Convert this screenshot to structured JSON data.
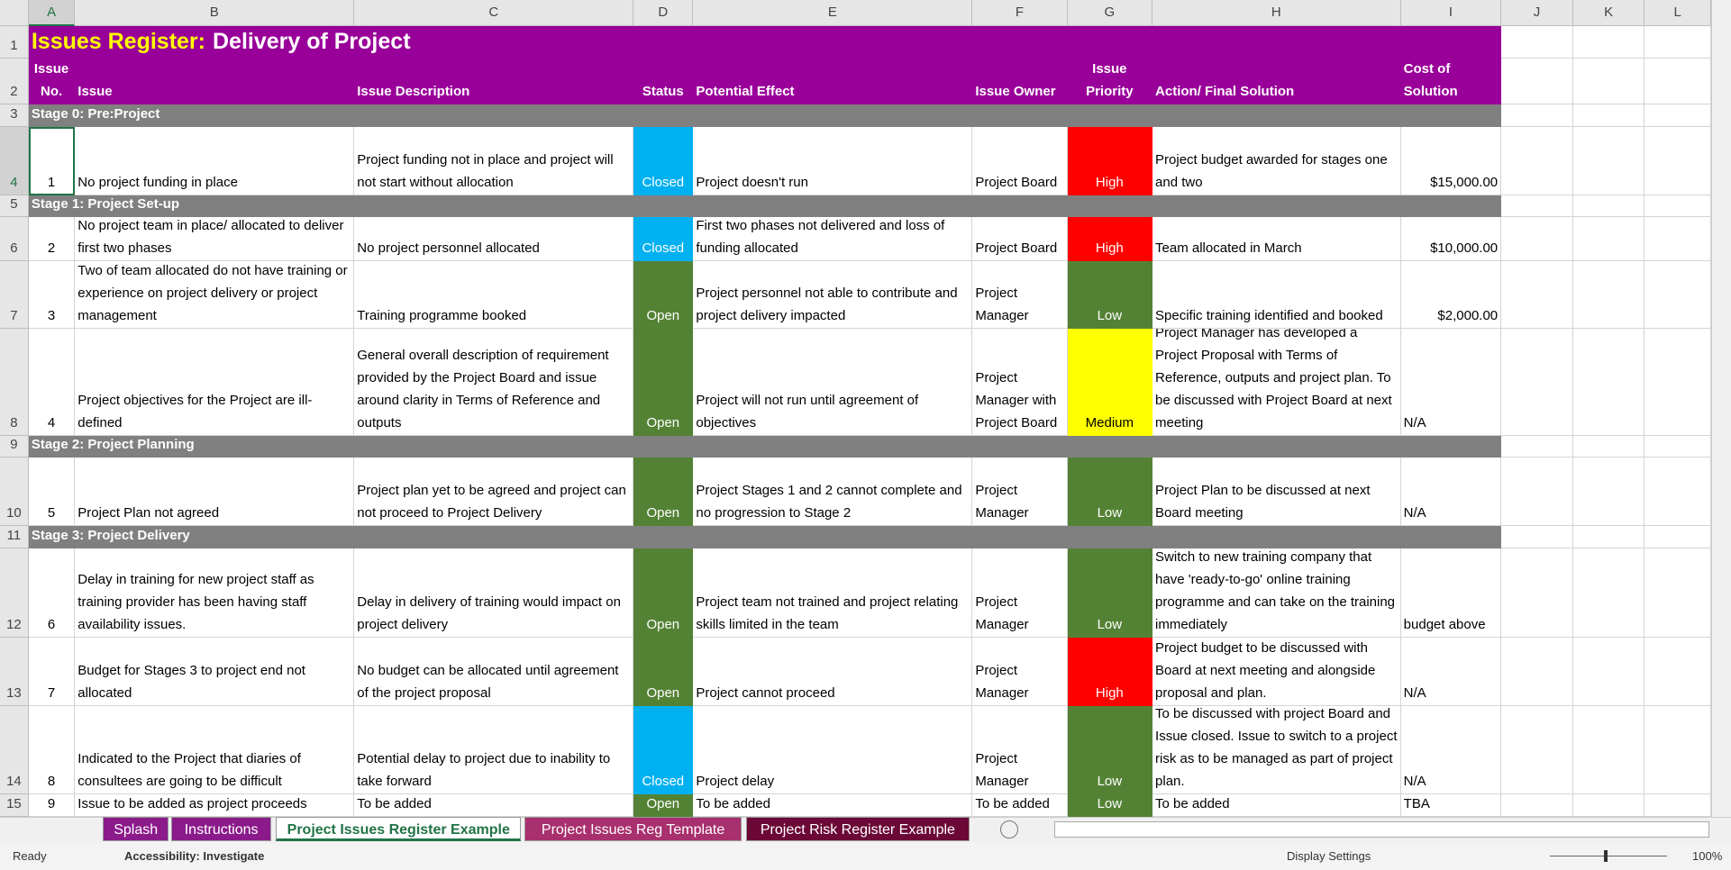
{
  "column_headers": [
    "A",
    "B",
    "C",
    "D",
    "E",
    "F",
    "G",
    "H",
    "I",
    "J",
    "K",
    "L"
  ],
  "row_headers": [
    1,
    2,
    3,
    4,
    5,
    6,
    7,
    8,
    9,
    10,
    11,
    12,
    13,
    14,
    15
  ],
  "title": {
    "prefix": "Issues Register:",
    "main": "Delivery of Project"
  },
  "header": {
    "no": "Issue No.",
    "issue": "Issue",
    "description": "Issue Description",
    "status": "Status",
    "effect": "Potential Effect",
    "owner": "Issue Owner",
    "priority": "Issue Priority",
    "action": "Action/ Final Solution",
    "cost": "Cost of Solution"
  },
  "rows": [
    {
      "stage": "Stage 0: Pre:Project"
    },
    {
      "no": 1,
      "issue": "No project funding in place",
      "description": "Project funding not in place and project will not start without allocation",
      "status": "Closed",
      "status_fill": "#00b0f0",
      "effect": "Project doesn't run",
      "owner": "Project Board",
      "priority": "High",
      "priority_fill": "#ff0000",
      "action": "Project budget awarded for stages one and two",
      "cost": "$15,000.00"
    },
    {
      "stage": "Stage 1: Project Set-up"
    },
    {
      "no": 2,
      "issue": "No project team in place/ allocated to deliver first two phases",
      "description": "No project personnel allocated",
      "status": "Closed",
      "status_fill": "#00b0f0",
      "effect": "First two phases not delivered and loss of funding allocated",
      "owner": "Project Board",
      "priority": "High",
      "priority_fill": "#ff0000",
      "action": "Team allocated in March",
      "cost": "$10,000.00"
    },
    {
      "no": 3,
      "issue": "Two of team allocated do not have training or experience on project delivery or project management",
      "description": "Training programme booked",
      "status": "Open",
      "status_fill": "#548235",
      "effect": "Project personnel not able to contribute and project delivery impacted",
      "owner": "Project Manager",
      "priority": "Low",
      "priority_fill": "#548235",
      "action": "Specific training identified and booked",
      "cost": "$2,000.00"
    },
    {
      "no": 4,
      "issue": "Project objectives for the Project are ill-defined",
      "description": "General overall description of requirement provided by the Project Board and issue around clarity in Terms of Reference and outputs",
      "status": "Open",
      "status_fill": "#548235",
      "effect": "Project will not run until agreement of objectives",
      "owner": "Project Manager with Project Board",
      "priority": "Medium",
      "priority_fill": "#ffff00",
      "action": "Project Manager has developed a Project Proposal with Terms of Reference, outputs and project plan. To be discussed with Project Board at next meeting",
      "cost": "N/A"
    },
    {
      "stage": "Stage 2: Project Planning"
    },
    {
      "no": 5,
      "issue": "Project Plan not agreed",
      "description": "Project plan yet to be agreed and project can not proceed to Project Delivery",
      "status": "Open",
      "status_fill": "#548235",
      "effect": "Project Stages 1 and 2 cannot complete and no progression to Stage 2",
      "owner": "Project Manager",
      "priority": "Low",
      "priority_fill": "#548235",
      "action": "Project Plan to be discussed at next Board meeting",
      "cost": "N/A"
    },
    {
      "stage": "Stage 3: Project Delivery"
    },
    {
      "no": 6,
      "issue": "Delay in training for new project staff as training provider has been having staff availability issues.",
      "description": "Delay in delivery of training would impact on project delivery",
      "status": "Open",
      "status_fill": "#548235",
      "effect": "Project team not trained and project relating skills limited in the team",
      "owner": "Project Manager",
      "priority": "Low",
      "priority_fill": "#548235",
      "action": "Switch to new training company that have 'ready-to-go' online training programme and can take on the training immediately",
      "cost": "budget above"
    },
    {
      "no": 7,
      "issue": "Budget for Stages 3 to project end not allocated",
      "description": "No budget can be allocated until agreement of the project proposal",
      "status": "Open",
      "status_fill": "#548235",
      "effect": "Project cannot proceed",
      "owner": "Project Manager",
      "priority": "High",
      "priority_fill": "#ff0000",
      "action": "Project budget to be discussed with Board at next meeting and alongside proposal and plan.",
      "cost": "N/A"
    },
    {
      "no": 8,
      "issue": "Indicated to the Project that diaries of consultees are going to be difficult",
      "description": "Potential delay to project due to inability to take forward",
      "status": "Closed",
      "status_fill": "#00b0f0",
      "effect": "Project delay",
      "owner": "Project Manager",
      "priority": "Low",
      "priority_fill": "#548235",
      "action": "To be discussed with project Board and Issue closed. Issue to switch to a project risk as to be managed as part of project plan.",
      "cost": "N/A"
    },
    {
      "no": 9,
      "issue": "Issue to be added as project proceeds",
      "description": "To be added",
      "status": "Open",
      "status_fill": "#548235",
      "effect": "To be added",
      "owner": "To be added",
      "priority": "Low",
      "priority_fill": "#548235",
      "action": "To be added",
      "cost": "TBA"
    }
  ],
  "sheet_tabs": [
    {
      "label": "Splash",
      "color": "#8b1a8b"
    },
    {
      "label": "Instructions",
      "color": "#8b1a8b"
    },
    {
      "label": "Project Issues Register Example",
      "color": "#ffffff",
      "active": true
    },
    {
      "label": "Project Issues Reg Template",
      "color": "#a8306e"
    },
    {
      "label": "Project Risk Register Example",
      "color": "#6b0836"
    }
  ],
  "status_bar": {
    "mode": "Ready",
    "accessibility": "Accessibility: Investigate",
    "display": "Display Settings",
    "zoom": "100%"
  }
}
